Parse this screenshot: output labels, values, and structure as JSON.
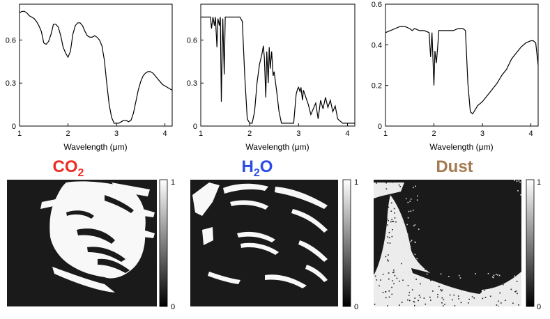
{
  "colors": {
    "co2": "#ee2b24",
    "h2o": "#2a4be8",
    "dust": "#a47a52"
  },
  "maps": {
    "labels": [
      {
        "main": "CO",
        "sub": "2",
        "tail": ""
      },
      {
        "main": "H",
        "sub": "2",
        "tail": "O"
      },
      {
        "main": "Dust",
        "sub": "",
        "tail": ""
      }
    ],
    "colorbar_ticks": [
      "0",
      "1"
    ]
  },
  "chart_data": [
    {
      "type": "line",
      "title": "",
      "xlabel": "Wavelength (μm)",
      "ylabel": "",
      "xlim": [
        1.0,
        4.15
      ],
      "ylim": [
        0,
        0.85
      ],
      "xticks": [
        1,
        2,
        3,
        4
      ],
      "yticks": [
        0,
        0.3,
        0.6
      ],
      "grid": false,
      "series": [
        {
          "x": [
            1.0,
            1.05,
            1.1,
            1.15,
            1.2,
            1.25,
            1.3,
            1.35,
            1.4,
            1.45,
            1.5,
            1.55,
            1.6,
            1.65,
            1.7,
            1.75,
            1.8,
            1.85,
            1.9,
            1.95,
            2.0,
            2.05,
            2.1,
            2.15,
            2.2,
            2.25,
            2.3,
            2.35,
            2.4,
            2.45,
            2.5,
            2.55,
            2.6,
            2.65,
            2.7,
            2.75,
            2.8,
            2.85,
            2.9,
            2.95,
            3.0,
            3.05,
            3.1,
            3.15,
            3.2,
            3.25,
            3.3,
            3.35,
            3.4,
            3.45,
            3.5,
            3.55,
            3.6,
            3.65,
            3.7,
            3.75,
            3.8,
            3.85,
            3.9,
            3.95,
            4.0,
            4.05,
            4.1,
            4.15
          ],
          "y": [
            0.79,
            0.8,
            0.8,
            0.79,
            0.77,
            0.76,
            0.75,
            0.73,
            0.7,
            0.66,
            0.58,
            0.57,
            0.59,
            0.64,
            0.71,
            0.71,
            0.69,
            0.63,
            0.55,
            0.51,
            0.48,
            0.52,
            0.64,
            0.7,
            0.72,
            0.72,
            0.7,
            0.66,
            0.63,
            0.62,
            0.62,
            0.63,
            0.62,
            0.6,
            0.56,
            0.46,
            0.3,
            0.15,
            0.06,
            0.02,
            0.02,
            0.02,
            0.03,
            0.04,
            0.04,
            0.03,
            0.04,
            0.09,
            0.17,
            0.25,
            0.31,
            0.35,
            0.37,
            0.38,
            0.38,
            0.37,
            0.35,
            0.33,
            0.31,
            0.29,
            0.28,
            0.27,
            0.26,
            0.25
          ]
        }
      ]
    },
    {
      "type": "line",
      "title": "",
      "xlabel": "Wavelength (μm)",
      "ylabel": "",
      "xlim": [
        1.0,
        4.15
      ],
      "ylim": [
        0,
        0.85
      ],
      "xticks": [
        1,
        2,
        3,
        4
      ],
      "yticks": [
        0,
        0.3,
        0.6
      ],
      "grid": false,
      "series": [
        {
          "x": [
            1.0,
            1.1,
            1.2,
            1.22,
            1.25,
            1.28,
            1.3,
            1.33,
            1.35,
            1.38,
            1.4,
            1.42,
            1.45,
            1.48,
            1.5,
            1.55,
            1.6,
            1.65,
            1.7,
            1.75,
            1.8,
            1.85,
            1.9,
            1.95,
            2.0,
            2.05,
            2.1,
            2.15,
            2.2,
            2.25,
            2.28,
            2.3,
            2.33,
            2.35,
            2.38,
            2.4,
            2.42,
            2.45,
            2.48,
            2.5,
            2.55,
            2.6,
            2.65,
            2.7,
            2.75,
            2.8,
            2.85,
            2.9,
            2.92,
            2.95,
            2.98,
            3.0,
            3.03,
            3.05,
            3.08,
            3.1,
            3.15,
            3.2,
            3.25,
            3.3,
            3.35,
            3.4,
            3.45,
            3.5,
            3.55,
            3.6,
            3.65,
            3.7,
            3.75,
            3.8,
            3.9,
            4.0,
            4.15
          ],
          "y": [
            0.76,
            0.76,
            0.76,
            0.68,
            0.76,
            0.7,
            0.76,
            0.55,
            0.75,
            0.7,
            0.76,
            0.17,
            0.75,
            0.36,
            0.76,
            0.76,
            0.76,
            0.76,
            0.76,
            0.76,
            0.76,
            0.73,
            0.35,
            0.05,
            0.02,
            0.02,
            0.1,
            0.3,
            0.43,
            0.5,
            0.56,
            0.48,
            0.2,
            0.52,
            0.3,
            0.55,
            0.4,
            0.52,
            0.35,
            0.38,
            0.25,
            0.1,
            0.02,
            0.02,
            0.02,
            0.02,
            0.02,
            0.02,
            0.1,
            0.22,
            0.26,
            0.27,
            0.24,
            0.27,
            0.18,
            0.25,
            0.2,
            0.15,
            0.08,
            0.12,
            0.16,
            0.05,
            0.18,
            0.12,
            0.2,
            0.13,
            0.18,
            0.1,
            0.14,
            0.05,
            0.02,
            0.02,
            0.02
          ]
        }
      ]
    },
    {
      "type": "line",
      "title": "",
      "xlabel": "Wavelength (μm)",
      "ylabel": "",
      "xlim": [
        1.0,
        4.15
      ],
      "ylim": [
        0,
        0.6
      ],
      "xticks": [
        1,
        2,
        3,
        4
      ],
      "yticks": [
        0,
        0.2,
        0.4,
        0.6
      ],
      "grid": false,
      "series": [
        {
          "x": [
            1.0,
            1.1,
            1.2,
            1.3,
            1.4,
            1.5,
            1.55,
            1.6,
            1.7,
            1.8,
            1.9,
            1.93,
            1.96,
            2.0,
            2.02,
            2.05,
            2.08,
            2.1,
            2.2,
            2.3,
            2.4,
            2.5,
            2.6,
            2.65,
            2.7,
            2.75,
            2.8,
            2.85,
            2.9,
            3.0,
            3.1,
            3.2,
            3.3,
            3.4,
            3.5,
            3.6,
            3.7,
            3.8,
            3.9,
            4.0,
            4.05,
            4.1,
            4.15
          ],
          "y": [
            0.46,
            0.47,
            0.48,
            0.49,
            0.49,
            0.48,
            0.47,
            0.48,
            0.47,
            0.47,
            0.46,
            0.34,
            0.46,
            0.2,
            0.37,
            0.31,
            0.4,
            0.47,
            0.47,
            0.47,
            0.47,
            0.48,
            0.48,
            0.47,
            0.21,
            0.07,
            0.06,
            0.08,
            0.1,
            0.12,
            0.15,
            0.18,
            0.21,
            0.25,
            0.28,
            0.33,
            0.36,
            0.39,
            0.41,
            0.42,
            0.42,
            0.41,
            0.3
          ]
        }
      ]
    }
  ]
}
